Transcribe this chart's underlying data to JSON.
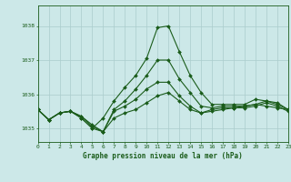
{
  "bg_color": "#cce8e8",
  "grid_color": "#aacccc",
  "line_color": "#1a5c1a",
  "title": "Graphe pression niveau de la mer (hPa)",
  "xlim": [
    0,
    23
  ],
  "ylim": [
    1034.6,
    1038.6
  ],
  "yticks": [
    1035,
    1036,
    1037,
    1038
  ],
  "xtick_labels": [
    "0",
    "1",
    "2",
    "3",
    "4",
    "5",
    "6",
    "7",
    "8",
    "9",
    "10",
    "11",
    "12",
    "13",
    "14",
    "15",
    "16",
    "17",
    "18",
    "19",
    "20",
    "21",
    "22",
    "23"
  ],
  "series": [
    [
      1035.55,
      1035.25,
      1035.45,
      1035.5,
      1035.35,
      1035.1,
      1034.9,
      1035.3,
      1035.45,
      1035.55,
      1035.75,
      1035.95,
      1036.05,
      1035.8,
      1035.55,
      1035.45,
      1035.5,
      1035.55,
      1035.6,
      1035.65,
      1035.7,
      1035.65,
      1035.6,
      1035.55
    ],
    [
      1035.55,
      1035.25,
      1035.45,
      1035.5,
      1035.35,
      1035.05,
      1034.9,
      1035.5,
      1035.65,
      1035.85,
      1036.15,
      1036.35,
      1036.35,
      1035.95,
      1035.65,
      1035.45,
      1035.55,
      1035.6,
      1035.6,
      1035.6,
      1035.65,
      1035.75,
      1035.65,
      1035.5
    ],
    [
      1035.55,
      1035.25,
      1035.45,
      1035.5,
      1035.3,
      1035.0,
      1034.9,
      1035.55,
      1035.8,
      1036.15,
      1036.55,
      1037.0,
      1037.0,
      1036.45,
      1036.05,
      1035.65,
      1035.6,
      1035.65,
      1035.65,
      1035.65,
      1035.7,
      1035.8,
      1035.7,
      1035.55
    ],
    [
      1035.55,
      1035.25,
      1035.45,
      1035.5,
      1035.3,
      1035.0,
      1035.3,
      1035.8,
      1036.2,
      1036.55,
      1037.05,
      1037.95,
      1038.0,
      1037.25,
      1036.55,
      1036.05,
      1035.7,
      1035.7,
      1035.7,
      1035.7,
      1035.85,
      1035.8,
      1035.75,
      1035.55
    ]
  ],
  "title_fontsize": 5.5,
  "tick_fontsize": 4.5,
  "linewidth": 0.8,
  "markersize": 2.0
}
